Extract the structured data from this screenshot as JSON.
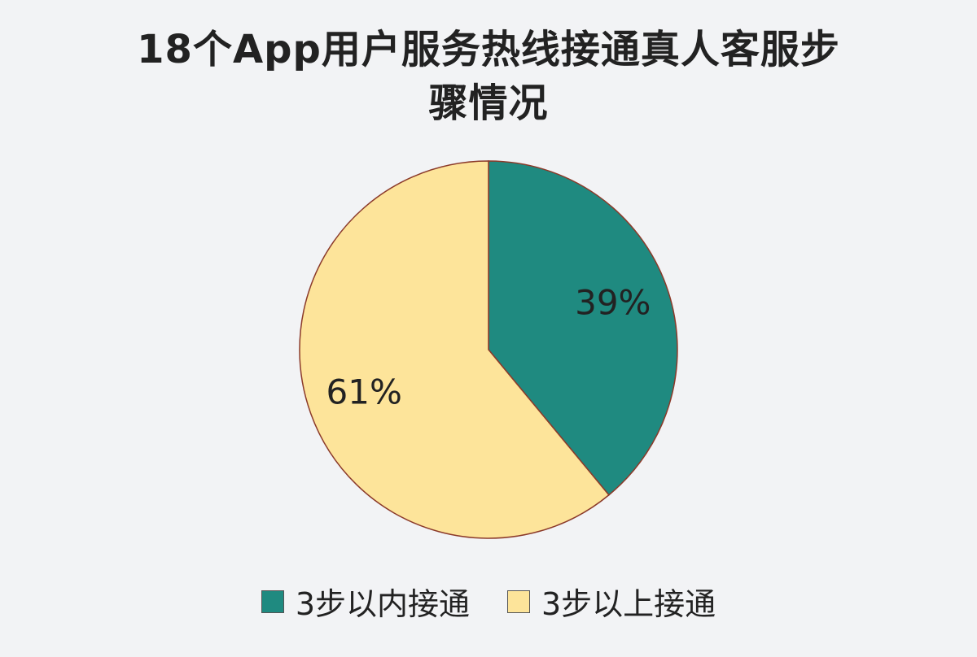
{
  "chart_data": {
    "type": "pie",
    "title": "18个App用户服务热线接通真人客服步骤情况",
    "categories": [
      "3步以内接通",
      "3步以上接通"
    ],
    "values": [
      39,
      61
    ],
    "value_labels": [
      "39%",
      "61%"
    ],
    "colors": [
      "#1f8a80",
      "#fde49a"
    ],
    "legend": "bottom"
  }
}
